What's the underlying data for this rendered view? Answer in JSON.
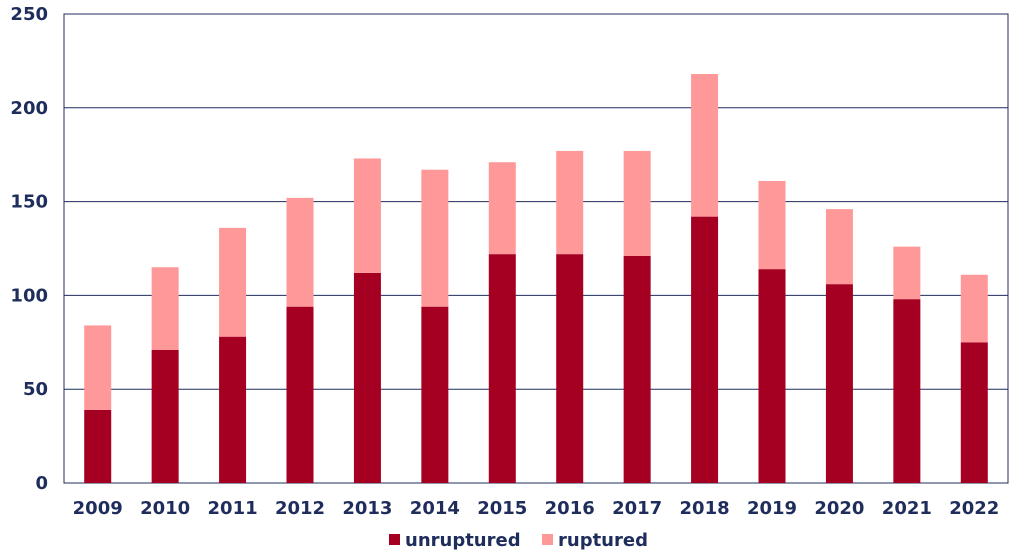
{
  "chart_data": {
    "type": "bar",
    "stacked": true,
    "categories": [
      "2009",
      "2010",
      "2011",
      "2012",
      "2013",
      "2014",
      "2015",
      "2016",
      "2017",
      "2018",
      "2019",
      "2020",
      "2021",
      "2022"
    ],
    "series": [
      {
        "name": "unruptured",
        "color": "#a50021",
        "values": [
          39,
          71,
          78,
          94,
          112,
          94,
          122,
          122,
          121,
          142,
          114,
          106,
          98,
          75
        ]
      },
      {
        "name": "ruptured",
        "color": "#ff9999",
        "values": [
          45,
          44,
          58,
          58,
          61,
          73,
          49,
          55,
          56,
          76,
          47,
          40,
          28,
          36
        ]
      }
    ],
    "ylim": [
      0,
      250
    ],
    "yticks": [
      0,
      50,
      100,
      150,
      200,
      250
    ],
    "ytick_labels": [
      "0",
      "50",
      "100",
      "150",
      "200",
      "250"
    ],
    "grid": true,
    "legend_position": "bottom",
    "title": "",
    "xlabel": "",
    "ylabel": ""
  }
}
